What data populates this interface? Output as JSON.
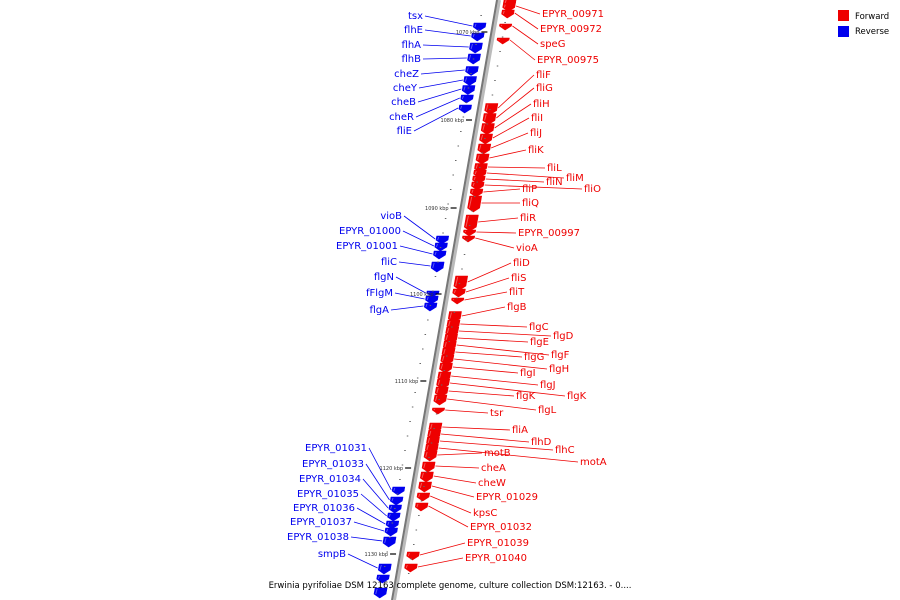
{
  "caption": "Erwinia pyrifoliae DSM 12163 complete genome, culture collection DSM:12163. - 0....",
  "legend": [
    {
      "label": "Forward",
      "color": "#ee0000"
    },
    {
      "label": "Reverse",
      "color": "#0000ee"
    }
  ],
  "colors": {
    "forward": "#ee0000",
    "reverse": "#0000ee",
    "axis": "#888888"
  },
  "ticks": [
    "1070 kbp",
    "1080 kbp",
    "1090 kbp",
    "1100 kbp",
    "1110 kbp",
    "1120 kbp",
    "1130 kbp"
  ],
  "forward_labels": [
    "EPYR_00971",
    "EPYR_00972",
    "speG",
    "EPYR_00975",
    "fliF",
    "fliG",
    "fliH",
    "fliI",
    "fliJ",
    "fliK",
    "fliL",
    "fliM",
    "fliN",
    "fliO",
    "fliP",
    "fliQ",
    "fliR",
    "EPYR_00997",
    "vioA",
    "fliD",
    "fliS",
    "fliT",
    "flgB",
    "flgC",
    "flgD",
    "flgE",
    "flgF",
    "flgG",
    "flgH",
    "flgI",
    "flgJ",
    "flgK",
    "flgK",
    "flgL",
    "tsr",
    "fliA",
    "flhD",
    "flhC",
    "motA",
    "motB",
    "cheA",
    "cheW",
    "EPYR_01029",
    "kpsC",
    "EPYR_01032",
    "EPYR_01039",
    "EPYR_01040"
  ],
  "reverse_labels": [
    "tsx",
    "flhE",
    "flhA",
    "flhB",
    "cheZ",
    "cheY",
    "cheB",
    "cheR",
    "fliE",
    "vioB",
    "EPYR_01000",
    "EPYR_01001",
    "fliC",
    "flgN",
    "fFlgM",
    "flgA",
    "EPYR_01031",
    "EPYR_01033",
    "EPYR_01034",
    "EPYR_01035",
    "EPYR_01036",
    "EPYR_01037",
    "EPYR_01038",
    "smpB"
  ]
}
